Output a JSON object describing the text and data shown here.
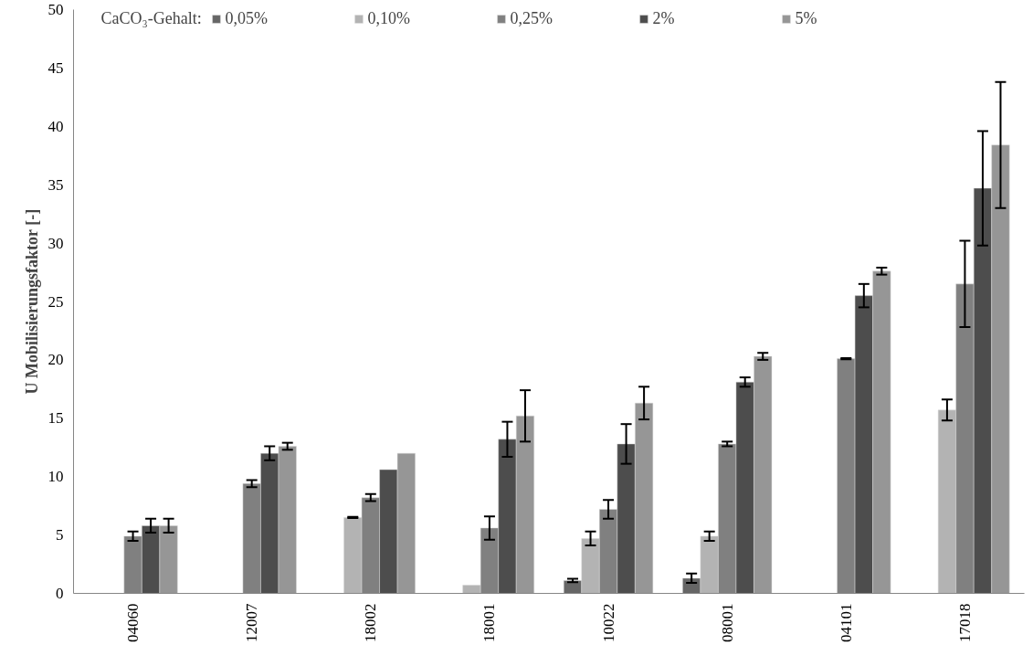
{
  "chart_data": {
    "type": "bar",
    "ylabel": "U Mobilisierungsfaktor [-]",
    "legend_title": "CaCO₃-Gehalt:",
    "categories": [
      "04060",
      "12007",
      "18002",
      "18001",
      "10022",
      "08001",
      "04101",
      "17018"
    ],
    "series": [
      {
        "name": "0,05%",
        "color": "#666666",
        "values": [
          null,
          null,
          null,
          null,
          1.1,
          1.3,
          null,
          null
        ],
        "errors": [
          null,
          null,
          null,
          null,
          0.15,
          0.4,
          null,
          null
        ]
      },
      {
        "name": "0,10%",
        "color": "#b3b3b3",
        "values": [
          null,
          null,
          6.5,
          0.7,
          4.7,
          4.9,
          null,
          15.7
        ],
        "errors": [
          null,
          null,
          0.05,
          null,
          0.6,
          0.4,
          null,
          0.9
        ]
      },
      {
        "name": "0,25%",
        "color": "#808080",
        "values": [
          4.9,
          9.4,
          8.2,
          5.6,
          7.2,
          12.8,
          20.1,
          26.5
        ],
        "errors": [
          0.4,
          0.3,
          0.3,
          1.0,
          0.8,
          0.2,
          0.05,
          3.7
        ]
      },
      {
        "name": "2%",
        "color": "#4d4d4d",
        "values": [
          5.8,
          12.0,
          10.6,
          13.2,
          12.8,
          18.1,
          25.5,
          34.7
        ],
        "errors": [
          0.6,
          0.6,
          null,
          1.5,
          1.7,
          0.4,
          1.0,
          4.9
        ]
      },
      {
        "name": "5%",
        "color": "#969696",
        "values": [
          5.8,
          12.6,
          12.0,
          15.2,
          16.3,
          20.3,
          27.6,
          38.4
        ],
        "errors": [
          0.6,
          0.3,
          null,
          2.2,
          1.4,
          0.3,
          0.3,
          5.4
        ]
      }
    ],
    "ylim": [
      0,
      50
    ],
    "yticks": [
      0,
      5,
      10,
      15,
      20,
      25,
      30,
      35,
      40,
      45,
      50
    ],
    "grid": false,
    "legend": "top"
  }
}
